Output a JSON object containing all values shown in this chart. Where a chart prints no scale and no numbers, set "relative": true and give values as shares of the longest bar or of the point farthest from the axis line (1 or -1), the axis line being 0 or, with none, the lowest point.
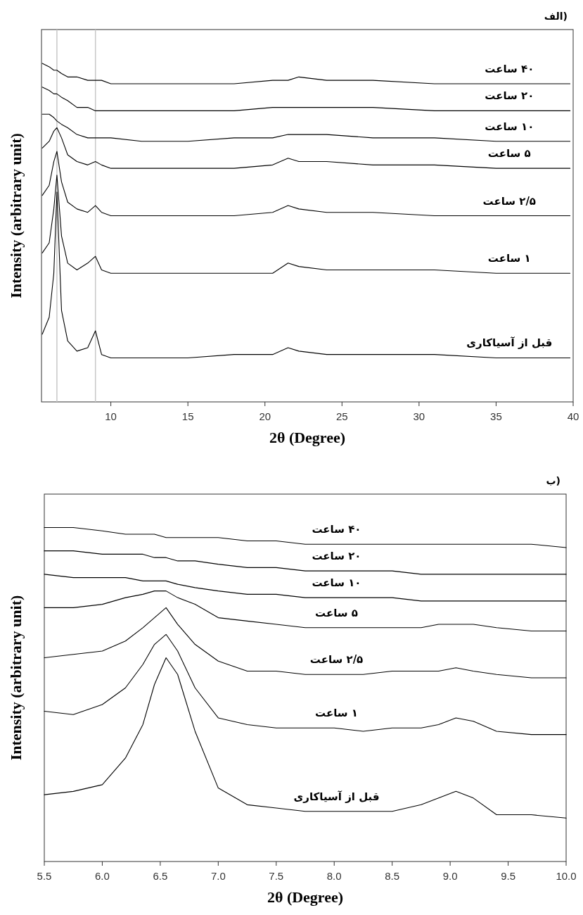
{
  "chart_data": [
    {
      "type": "line",
      "title": "الف)",
      "xlabel": "2θ (Degree)",
      "ylabel": "Intensity (arbitrary unit)",
      "relative": true,
      "tick_labels": "x",
      "x": [
        5.55,
        6.0,
        6.3,
        6.5,
        6.8,
        7.2,
        7.8,
        8.5,
        9.0,
        9.4,
        10,
        12,
        15,
        18,
        20.5,
        21.5,
        22.2,
        24,
        27,
        31,
        35,
        39.8
      ],
      "xlim": [
        5.5,
        40
      ],
      "xticks": [
        10,
        15,
        20,
        25,
        30,
        35,
        40
      ],
      "ref_lines": [
        {
          "axis": "x",
          "value": 6.5,
          "color": "#c8c8c8"
        },
        {
          "axis": "x",
          "value": 9.0,
          "color": "#c8c8c8"
        }
      ],
      "series": [
        {
          "name": "۴۰ ساعت",
          "color": "#000000",
          "values": [
            1.0,
            0.99,
            0.98,
            0.98,
            0.97,
            0.96,
            0.96,
            0.95,
            0.95,
            0.95,
            0.94,
            0.94,
            0.94,
            0.94,
            0.95,
            0.95,
            0.96,
            0.95,
            0.95,
            0.94,
            0.94,
            0.94
          ]
        },
        {
          "name": "۲۰ ساعت",
          "color": "#000000",
          "values": [
            0.93,
            0.92,
            0.91,
            0.91,
            0.9,
            0.89,
            0.87,
            0.87,
            0.86,
            0.86,
            0.86,
            0.86,
            0.86,
            0.86,
            0.87,
            0.87,
            0.87,
            0.87,
            0.87,
            0.86,
            0.86,
            0.86
          ]
        },
        {
          "name": "۱۰ ساعت",
          "color": "#000000",
          "values": [
            0.85,
            0.85,
            0.84,
            0.83,
            0.82,
            0.81,
            0.79,
            0.78,
            0.78,
            0.78,
            0.78,
            0.77,
            0.77,
            0.78,
            0.78,
            0.79,
            0.79,
            0.79,
            0.78,
            0.78,
            0.77,
            0.77
          ]
        },
        {
          "name": "۵ ساعت",
          "color": "#000000",
          "values": [
            0.75,
            0.77,
            0.8,
            0.81,
            0.78,
            0.73,
            0.71,
            0.7,
            0.71,
            0.7,
            0.69,
            0.69,
            0.69,
            0.69,
            0.7,
            0.72,
            0.71,
            0.71,
            0.7,
            0.7,
            0.69,
            0.69
          ]
        },
        {
          "name": "۲/۵ ساعت",
          "color": "#000000",
          "values": [
            0.61,
            0.64,
            0.71,
            0.74,
            0.65,
            0.59,
            0.57,
            0.56,
            0.58,
            0.56,
            0.55,
            0.55,
            0.55,
            0.55,
            0.56,
            0.58,
            0.57,
            0.56,
            0.56,
            0.55,
            0.55,
            0.55
          ]
        },
        {
          "name": "۱ ساعت",
          "color": "#000000",
          "values": [
            0.44,
            0.47,
            0.57,
            0.67,
            0.49,
            0.41,
            0.39,
            0.41,
            0.43,
            0.39,
            0.38,
            0.38,
            0.38,
            0.38,
            0.38,
            0.41,
            0.4,
            0.39,
            0.39,
            0.39,
            0.38,
            0.38
          ]
        },
        {
          "name": "قبل از آسیاکاری",
          "color": "#000000",
          "values": [
            0.2,
            0.25,
            0.38,
            0.62,
            0.27,
            0.18,
            0.15,
            0.16,
            0.21,
            0.14,
            0.13,
            0.13,
            0.13,
            0.14,
            0.14,
            0.16,
            0.15,
            0.14,
            0.14,
            0.14,
            0.13,
            0.13
          ]
        }
      ]
    },
    {
      "type": "line",
      "title": "ب)",
      "xlabel": "2θ (Degree)",
      "ylabel": "Intensity (arbitrary unit)",
      "relative": true,
      "tick_labels": "x",
      "x": [
        5.5,
        5.75,
        6.0,
        6.2,
        6.35,
        6.45,
        6.55,
        6.65,
        6.8,
        7.0,
        7.25,
        7.5,
        7.75,
        8.0,
        8.25,
        8.5,
        8.75,
        8.9,
        9.05,
        9.2,
        9.4,
        9.7,
        10.0
      ],
      "xlim": [
        5.5,
        10
      ],
      "xticks": [
        5.5,
        {
          "value": 6,
          "label": "6.0"
        },
        6.5,
        {
          "value": 7,
          "label": "7.0"
        },
        7.5,
        {
          "value": 8,
          "label": "8.0"
        },
        8.5,
        {
          "value": 9,
          "label": "9.0"
        },
        9.5,
        {
          "value": 10,
          "label": "10.0"
        }
      ],
      "series": [
        {
          "name": "۴۰ ساعت",
          "color": "#000000",
          "values": [
            1.0,
            1.0,
            0.99,
            0.98,
            0.98,
            0.98,
            0.97,
            0.97,
            0.97,
            0.97,
            0.96,
            0.96,
            0.95,
            0.95,
            0.95,
            0.95,
            0.95,
            0.95,
            0.95,
            0.95,
            0.95,
            0.95,
            0.94
          ]
        },
        {
          "name": "۲۰ ساعت",
          "color": "#000000",
          "values": [
            0.93,
            0.93,
            0.92,
            0.92,
            0.92,
            0.91,
            0.91,
            0.9,
            0.9,
            0.89,
            0.88,
            0.88,
            0.87,
            0.87,
            0.87,
            0.87,
            0.86,
            0.86,
            0.86,
            0.86,
            0.86,
            0.86,
            0.86
          ]
        },
        {
          "name": "۱۰ ساعت",
          "color": "#000000",
          "values": [
            0.86,
            0.85,
            0.85,
            0.85,
            0.84,
            0.84,
            0.84,
            0.83,
            0.82,
            0.81,
            0.8,
            0.8,
            0.79,
            0.79,
            0.79,
            0.79,
            0.78,
            0.78,
            0.78,
            0.78,
            0.78,
            0.78,
            0.78
          ]
        },
        {
          "name": "۵ ساعت",
          "color": "#000000",
          "values": [
            0.76,
            0.76,
            0.77,
            0.79,
            0.8,
            0.81,
            0.81,
            0.79,
            0.77,
            0.73,
            0.72,
            0.71,
            0.7,
            0.7,
            0.7,
            0.7,
            0.7,
            0.71,
            0.71,
            0.71,
            0.7,
            0.69,
            0.69
          ]
        },
        {
          "name": "۲/۵ ساعت",
          "color": "#000000",
          "values": [
            0.61,
            0.62,
            0.63,
            0.66,
            0.7,
            0.73,
            0.76,
            0.71,
            0.65,
            0.6,
            0.57,
            0.57,
            0.56,
            0.56,
            0.56,
            0.57,
            0.57,
            0.57,
            0.58,
            0.57,
            0.56,
            0.55,
            0.55
          ]
        },
        {
          "name": "۱ ساعت",
          "color": "#000000",
          "values": [
            0.45,
            0.44,
            0.47,
            0.52,
            0.59,
            0.65,
            0.68,
            0.63,
            0.52,
            0.43,
            0.41,
            0.4,
            0.4,
            0.4,
            0.39,
            0.4,
            0.4,
            0.41,
            0.43,
            0.42,
            0.39,
            0.38,
            0.38
          ]
        },
        {
          "name": "قبل از آسیاکاری",
          "color": "#000000",
          "values": [
            0.2,
            0.21,
            0.23,
            0.31,
            0.41,
            0.53,
            0.61,
            0.56,
            0.39,
            0.22,
            0.17,
            0.16,
            0.15,
            0.15,
            0.15,
            0.15,
            0.17,
            0.19,
            0.21,
            0.19,
            0.14,
            0.14,
            0.13
          ]
        }
      ]
    }
  ]
}
